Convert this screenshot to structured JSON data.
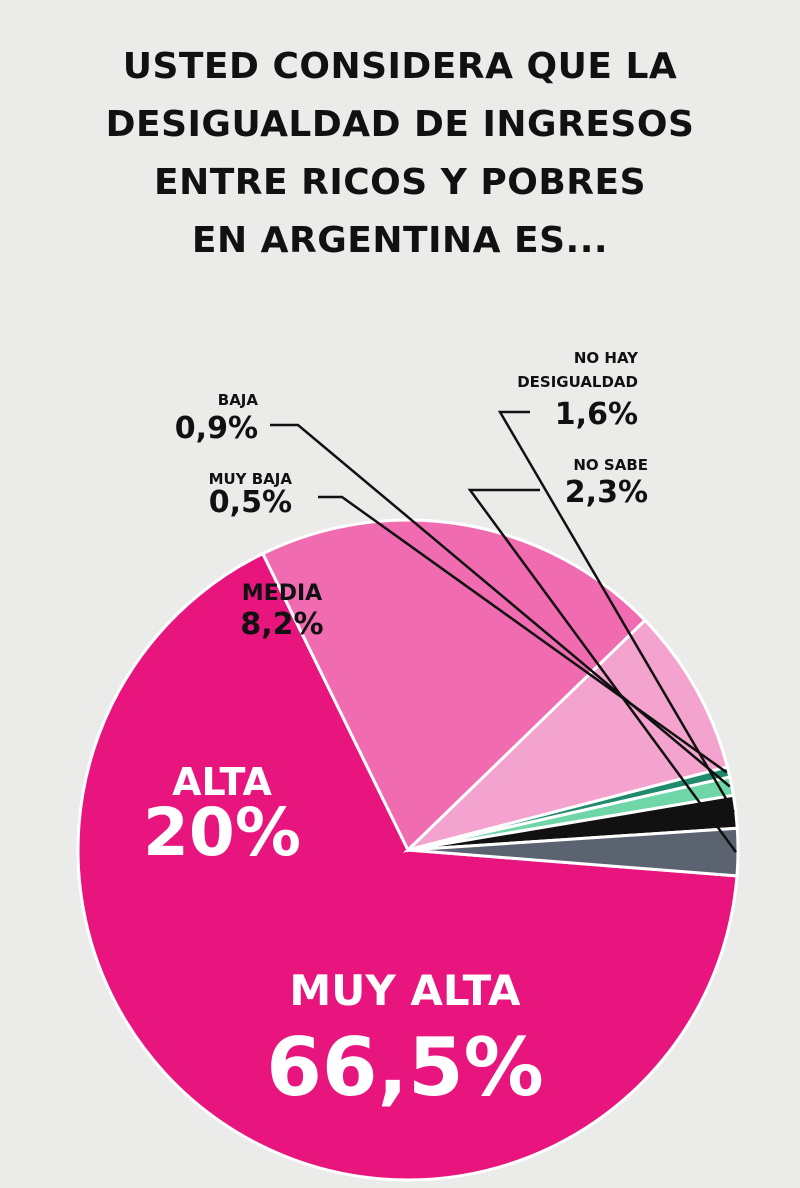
{
  "title_lines": [
    "USTED CONSIDERA QUE LA",
    "DESIGUALDAD DE INGRESOS",
    "ENTRE RICOS Y POBRES",
    "EN ARGENTINA ES..."
  ],
  "chart_data": {
    "type": "pie",
    "title": "USTED CONSIDERA QUE LA DESIGUALDAD DE INGRESOS ENTRE RICOS Y POBRES EN ARGENTINA ES...",
    "unit": "%",
    "slices": [
      {
        "label": "MUY ALTA",
        "value": 66.5,
        "value_label": "66,5%",
        "color": "#e8157f"
      },
      {
        "label": "ALTA",
        "value": 20,
        "value_label": "20%",
        "color": "#f06bb0"
      },
      {
        "label": "MEDIA",
        "value": 8.2,
        "value_label": "8,2%",
        "color": "#f3a3ce"
      },
      {
        "label": "MUY BAJA",
        "value": 0.5,
        "value_label": "0,5%",
        "color": "#1f8a6c"
      },
      {
        "label": "BAJA",
        "value": 0.9,
        "value_label": "0,9%",
        "color": "#6fd6a8"
      },
      {
        "label": "NO HAY DESIGUALDAD",
        "label_lines": [
          "NO HAY",
          "DESIGUALDAD"
        ],
        "value": 1.6,
        "value_label": "1,6%",
        "color": "#111111"
      },
      {
        "label": "NO SABE",
        "value": 2.3,
        "value_label": "2,3%",
        "color": "#5b6270"
      }
    ]
  }
}
